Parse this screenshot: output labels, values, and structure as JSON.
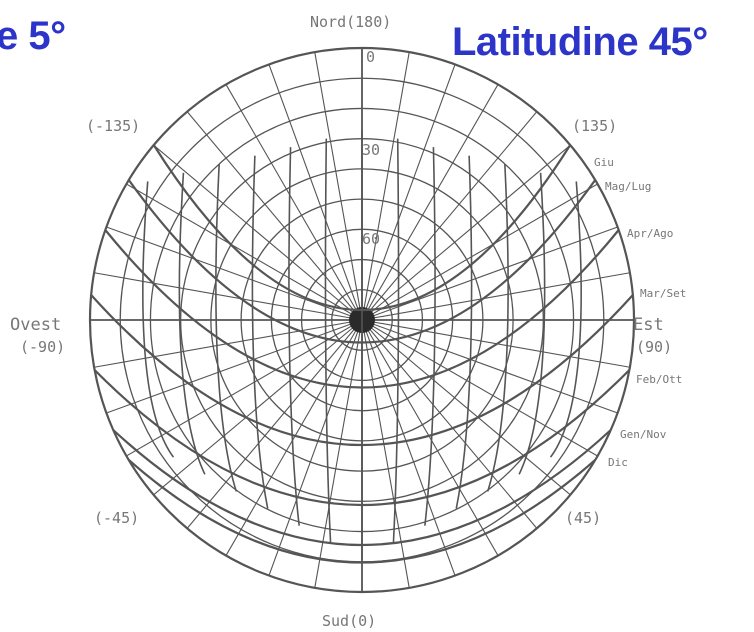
{
  "headings": {
    "left": "e 5°",
    "right": "Latitudine 45°"
  },
  "compass": {
    "north": "Nord(180)",
    "northwest": "(-135)",
    "northeast": "(135)",
    "west": "Ovest",
    "west_value": "(-90)",
    "east": "Est",
    "east_value": "(90)",
    "southwest": "(-45)",
    "southeast": "(45)",
    "south": "Sud(0)"
  },
  "altitude_labels": [
    "0",
    "30",
    "60"
  ],
  "months": [
    "Giu",
    "Mag/Lug",
    "Apr/Ago",
    "Mar/Set",
    "Feb/Ott",
    "Gen/Nov",
    "Dic"
  ],
  "colors": {
    "heading": "#2d35c8",
    "grid": "#555555",
    "labels": "#777777"
  }
}
